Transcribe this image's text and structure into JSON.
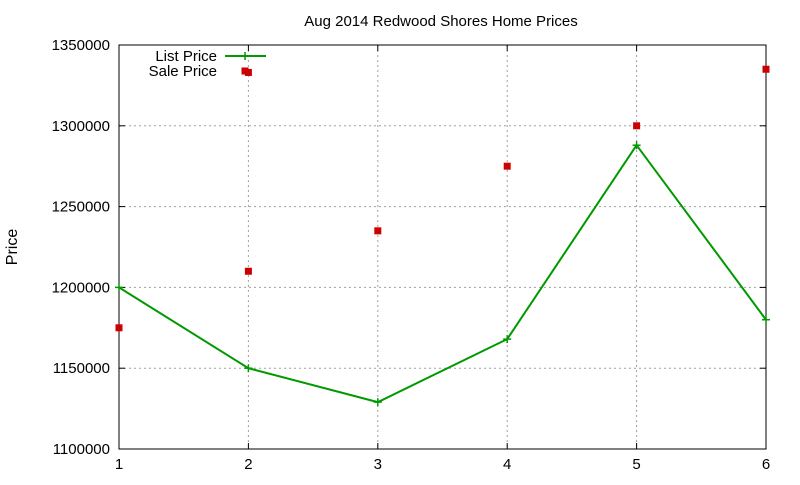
{
  "chart_data": {
    "type": "line",
    "title": "Aug 2014 Redwood Shores Home Prices",
    "xlabel": "",
    "ylabel": "Price",
    "x": [
      1,
      2,
      3,
      4,
      5,
      6
    ],
    "xlim": [
      1,
      6
    ],
    "ylim": [
      1100000,
      1350000
    ],
    "x_ticks": [
      "1",
      "2",
      "3",
      "4",
      "5",
      "6"
    ],
    "y_ticks": [
      "1100000",
      "1150000",
      "1200000",
      "1250000",
      "1300000",
      "1350000"
    ],
    "grid": true,
    "legend_position": "top-left",
    "series": [
      {
        "name": "List Price",
        "style": "line-with-points",
        "color": "#009900",
        "values": [
          1200000,
          1150000,
          1129000,
          1168000,
          1288000,
          1180000
        ]
      },
      {
        "name": "Sale Price",
        "style": "points",
        "color": "#cc0000",
        "values": [
          1175000,
          1210000,
          1235000,
          1275000,
          1300000,
          1335000
        ]
      }
    ],
    "extra_points": [
      {
        "series": "Sale Price",
        "x": 2,
        "y": 1333000
      }
    ]
  }
}
